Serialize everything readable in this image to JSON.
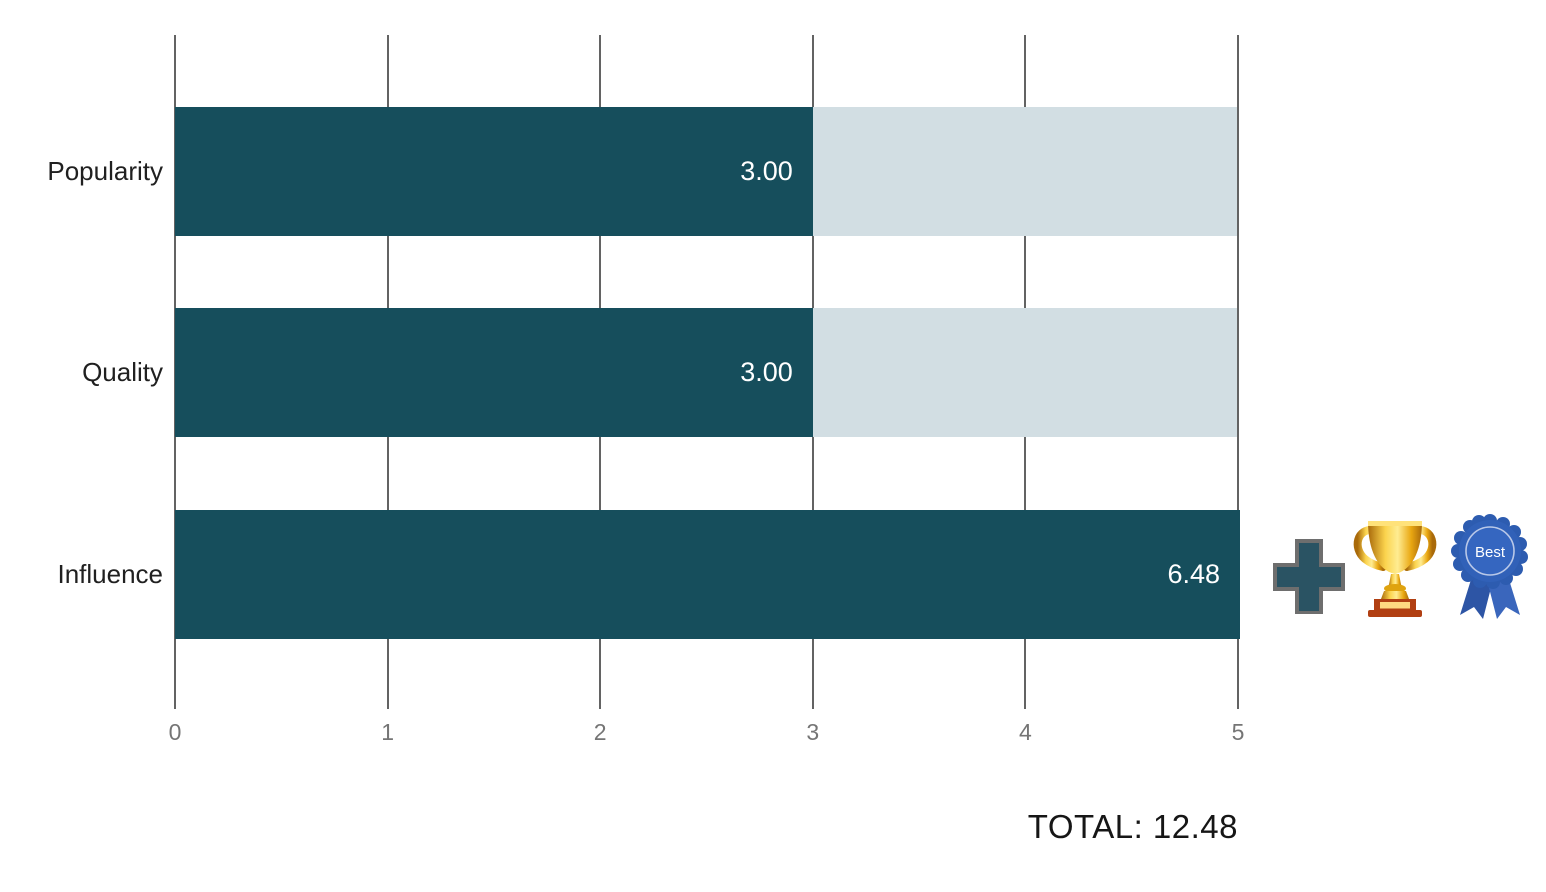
{
  "chart_data": {
    "type": "bar",
    "orientation": "horizontal",
    "categories": [
      "Popularity",
      "Quality",
      "Influence"
    ],
    "values": [
      3.0,
      3.0,
      6.48
    ],
    "value_labels": [
      "3.00",
      "3.00",
      "6.48"
    ],
    "xlim": [
      0,
      5
    ],
    "x_ticks": [
      "0",
      "1",
      "2",
      "3",
      "4",
      "5"
    ],
    "grid": true,
    "legend": false,
    "bar_color": "#164e5c",
    "track_color": "#d2dee3",
    "gridline_color": "#636363",
    "tick_label_color": "#757575",
    "category_label_color": "#202020",
    "value_label_color": "#ffffff"
  },
  "icons": {
    "plus": "plus-icon",
    "trophy": "trophy-icon",
    "ribbon": "best-ribbon-icon",
    "ribbon_label": "Best",
    "plus_fill": "#2a5363",
    "plus_border": "#6e6e6e",
    "ribbon_blue": "#3161b8",
    "trophy_gold": "#f6b21a",
    "trophy_base_red": "#b13f12"
  },
  "total": {
    "label": "TOTAL: 12.48",
    "value": 12.48
  }
}
